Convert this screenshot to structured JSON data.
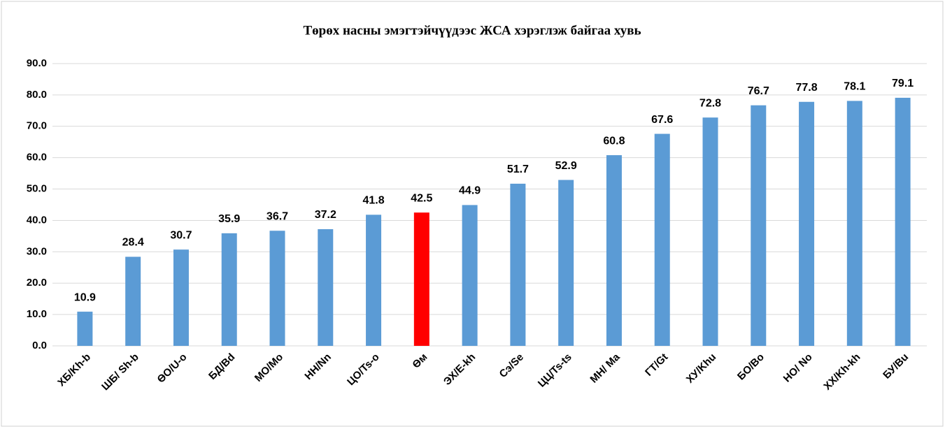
{
  "chart_data": {
    "type": "bar",
    "title": "Төрөх насны эмэгтэйчүүдээс ЖСА хэрэглэж байгаа хувь",
    "categories": [
      "ХБ/Kh-b",
      "ШБ/ Sh-b",
      "ӨО/U-o",
      "БД/Bd",
      "МО/Mo",
      "НН/Nn",
      "ЦО/Ts-o",
      "Өм",
      "ЭХ/E-kh",
      "Сэ/Se",
      "ЦЦ/Ts-ts",
      "МН/ Ma",
      "ГТ/Gt",
      "ХУ/Khu",
      "БО/Bo",
      "НО/ No",
      "ХХ/Kh-kh",
      "БУ/Bu"
    ],
    "values": [
      10.9,
      28.4,
      30.7,
      35.9,
      36.7,
      37.2,
      41.8,
      42.5,
      44.9,
      51.7,
      52.9,
      60.8,
      67.6,
      72.8,
      76.7,
      77.8,
      78.1,
      79.1
    ],
    "colors": [
      "#5b9bd5",
      "#5b9bd5",
      "#5b9bd5",
      "#5b9bd5",
      "#5b9bd5",
      "#5b9bd5",
      "#5b9bd5",
      "#ff0000",
      "#5b9bd5",
      "#5b9bd5",
      "#5b9bd5",
      "#5b9bd5",
      "#5b9bd5",
      "#5b9bd5",
      "#5b9bd5",
      "#5b9bd5",
      "#5b9bd5",
      "#5b9bd5"
    ],
    "ylim": [
      0,
      90
    ],
    "yticks": [
      {
        "value": 0,
        "label": "0.0"
      },
      {
        "value": 10,
        "label": "10.0"
      },
      {
        "value": 20,
        "label": "20.0"
      },
      {
        "value": 30,
        "label": "30.0"
      },
      {
        "value": 40,
        "label": "40.0"
      },
      {
        "value": 50,
        "label": "50.0"
      },
      {
        "value": 60,
        "label": "60.0"
      },
      {
        "value": 70,
        "label": "70.0"
      },
      {
        "value": 80,
        "label": "80.0"
      },
      {
        "value": 90,
        "label": "90.0"
      }
    ],
    "grid": true
  }
}
